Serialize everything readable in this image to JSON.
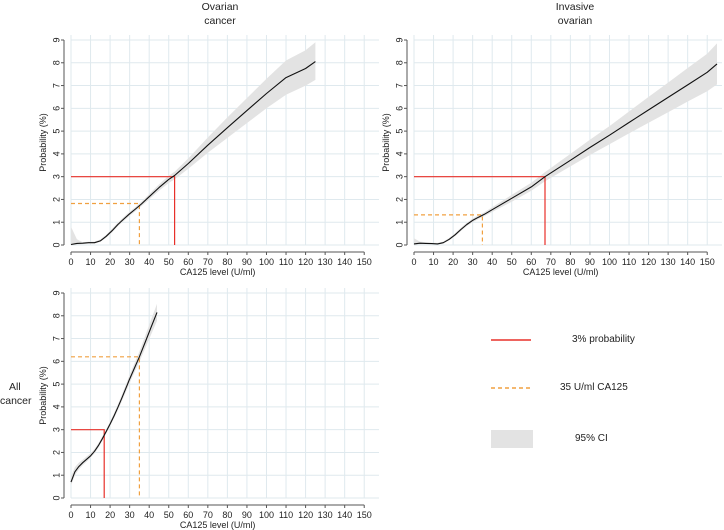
{
  "chart_data": [
    {
      "type": "line",
      "title_lines": [
        "Ovarian",
        "cancer"
      ],
      "xlabel": "CA125 level (U/ml)",
      "ylabel": "Probability (%)",
      "xlim": [
        0,
        155
      ],
      "ylim": [
        0,
        9
      ],
      "xticks": [
        "0",
        "10",
        "20",
        "30",
        "40",
        "50",
        "60",
        "70",
        "80",
        "90",
        "100",
        "110",
        "120",
        "130",
        "140",
        "150"
      ],
      "yticks": [
        "0",
        "1",
        "2",
        "3",
        "4",
        "5",
        "6",
        "7",
        "8",
        "9"
      ],
      "grid": true,
      "series": [
        {
          "name": "Probability",
          "x": [
            0,
            3,
            6,
            9,
            12,
            15,
            18,
            21,
            24,
            27,
            30,
            33,
            36,
            40,
            45,
            50,
            53,
            60,
            70,
            80,
            90,
            100,
            110,
            120,
            125
          ],
          "y": [
            0.02,
            0.07,
            0.08,
            0.1,
            0.1,
            0.18,
            0.38,
            0.63,
            0.9,
            1.14,
            1.37,
            1.58,
            1.8,
            2.12,
            2.52,
            2.88,
            3.05,
            3.58,
            4.38,
            5.15,
            5.9,
            6.65,
            7.35,
            7.75,
            8.05
          ],
          "ci_lower": [
            0.0,
            0.02,
            0.04,
            0.06,
            0.06,
            0.14,
            0.32,
            0.55,
            0.82,
            1.06,
            1.28,
            1.49,
            1.7,
            2.0,
            2.38,
            2.72,
            2.88,
            3.35,
            4.05,
            4.7,
            5.35,
            6.0,
            6.6,
            7.0,
            7.25
          ],
          "ci_upper": [
            0.8,
            0.25,
            0.12,
            0.14,
            0.15,
            0.24,
            0.45,
            0.72,
            0.99,
            1.23,
            1.46,
            1.67,
            1.9,
            2.24,
            2.66,
            3.04,
            3.22,
            3.8,
            4.72,
            5.6,
            6.45,
            7.3,
            8.1,
            8.55,
            8.9
          ]
        }
      ],
      "ref_3pct": {
        "x": 53,
        "y": 3
      },
      "ref_35": {
        "x": 35,
        "y": 1.82
      }
    },
    {
      "type": "line",
      "title_lines": [
        "Invasive",
        "ovarian"
      ],
      "xlabel": "CA125 level (U/ml)",
      "ylabel": "Probability (%)",
      "xlim": [
        0,
        155
      ],
      "ylim": [
        0,
        9
      ],
      "xticks": [
        "0",
        "10",
        "20",
        "30",
        "40",
        "50",
        "60",
        "70",
        "80",
        "90",
        "100",
        "110",
        "120",
        "130",
        "140",
        "150"
      ],
      "yticks": [
        "0",
        "1",
        "2",
        "3",
        "4",
        "5",
        "6",
        "7",
        "8",
        "9"
      ],
      "grid": true,
      "series": [
        {
          "name": "Probability",
          "x": [
            0,
            3,
            6,
            9,
            12,
            15,
            18,
            21,
            24,
            27,
            30,
            33,
            36,
            40,
            50,
            60,
            67,
            80,
            90,
            100,
            110,
            120,
            130,
            140,
            150,
            155
          ],
          "y": [
            0.05,
            0.08,
            0.07,
            0.06,
            0.05,
            0.1,
            0.25,
            0.45,
            0.68,
            0.9,
            1.08,
            1.22,
            1.35,
            1.55,
            2.05,
            2.55,
            3.0,
            3.72,
            4.28,
            4.82,
            5.38,
            5.93,
            6.48,
            7.03,
            7.58,
            7.95
          ],
          "ci_lower": [
            0.0,
            0.03,
            0.03,
            0.03,
            0.02,
            0.06,
            0.2,
            0.39,
            0.61,
            0.83,
            1.0,
            1.14,
            1.27,
            1.45,
            1.9,
            2.38,
            2.8,
            3.45,
            3.95,
            4.42,
            4.9,
            5.37,
            5.83,
            6.3,
            6.75,
            7.05
          ],
          "ci_upper": [
            0.3,
            0.15,
            0.12,
            0.1,
            0.09,
            0.15,
            0.31,
            0.52,
            0.76,
            0.98,
            1.16,
            1.31,
            1.44,
            1.66,
            2.2,
            2.73,
            3.2,
            4.0,
            4.62,
            5.22,
            5.86,
            6.5,
            7.13,
            7.77,
            8.4,
            8.85
          ]
        }
      ],
      "ref_3pct": {
        "x": 67,
        "y": 3
      },
      "ref_35": {
        "x": 35,
        "y": 1.32
      }
    },
    {
      "type": "line",
      "title_lines": [
        "All",
        "cancer"
      ],
      "xlabel": "CA125 level (U/ml)",
      "ylabel": "Probability (%)",
      "xlim": [
        0,
        155
      ],
      "ylim": [
        0,
        9
      ],
      "xticks": [
        "0",
        "10",
        "20",
        "30",
        "40",
        "50",
        "60",
        "70",
        "80",
        "90",
        "100",
        "110",
        "120",
        "130",
        "140",
        "150"
      ],
      "yticks": [
        "0",
        "1",
        "2",
        "3",
        "4",
        "5",
        "6",
        "7",
        "8",
        "9"
      ],
      "grid": true,
      "series": [
        {
          "name": "Probability",
          "x": [
            0,
            2,
            4,
            6,
            8,
            10,
            12,
            14,
            16,
            18,
            20,
            22,
            24,
            26,
            28,
            30,
            32,
            35,
            38,
            41,
            44
          ],
          "y": [
            0.7,
            1.15,
            1.38,
            1.55,
            1.7,
            1.85,
            2.05,
            2.3,
            2.6,
            2.92,
            3.25,
            3.6,
            3.98,
            4.38,
            4.8,
            5.22,
            5.62,
            6.2,
            6.85,
            7.5,
            8.15
          ],
          "ci_lower": [
            0.55,
            1.0,
            1.25,
            1.44,
            1.6,
            1.76,
            1.96,
            2.21,
            2.51,
            2.83,
            3.15,
            3.49,
            3.85,
            4.24,
            4.64,
            5.05,
            5.43,
            5.98,
            6.58,
            7.18,
            7.78
          ],
          "ci_upper": [
            0.95,
            1.35,
            1.55,
            1.68,
            1.82,
            1.96,
            2.15,
            2.4,
            2.7,
            3.02,
            3.36,
            3.72,
            4.11,
            4.52,
            4.96,
            5.4,
            5.82,
            6.43,
            7.13,
            7.83,
            8.52
          ]
        }
      ],
      "ref_3pct": {
        "x": 17,
        "y": 3
      },
      "ref_35": {
        "x": 35,
        "y": 6.2
      }
    }
  ],
  "legend": {
    "items": [
      {
        "label": "3% probability",
        "style": "red-solid"
      },
      {
        "label": "35 U/ml CA125",
        "style": "orange-dashed"
      },
      {
        "label": "95% CI",
        "style": "gray-band"
      }
    ]
  },
  "colors": {
    "line": "#111111",
    "ci_band": "#e3e3e3",
    "ref_3pct": "#e8302a",
    "ref_35": "#f0a040",
    "grid": "#dfe9ee",
    "axis": "#555555"
  }
}
